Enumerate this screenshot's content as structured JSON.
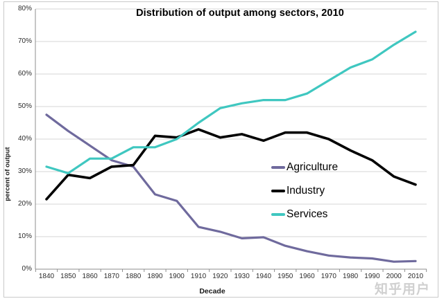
{
  "watermark": {
    "text": "知乎用户"
  },
  "chart_data": {
    "type": "line",
    "title": "Distribution of output among sectors, 2010",
    "xlabel": "Decade",
    "ylabel": "percent of output",
    "categories": [
      1840,
      1850,
      1860,
      1870,
      1880,
      1890,
      1900,
      1910,
      1920,
      1930,
      1940,
      1950,
      1960,
      1970,
      1980,
      1990,
      2000,
      2010
    ],
    "x_tick_labels": [
      "1840",
      "1850",
      "1860",
      "1870",
      "1880",
      "1890",
      "1900",
      "1910",
      "1920",
      "1930",
      "1940",
      "1950",
      "1960",
      "1970",
      "1980",
      "1990",
      "2000",
      "2010"
    ],
    "y_tick_labels": [
      "0%",
      "10%",
      "20%",
      "30%",
      "40%",
      "50%",
      "60%",
      "70%",
      "80%"
    ],
    "ylim": [
      0,
      80
    ],
    "y_tick_step": 10,
    "grid": true,
    "legend_position": "center-right",
    "grid_color": "#d6d6d6",
    "axis_color": "#8c8c8c",
    "series": [
      {
        "name": "Agriculture",
        "color": "#6f6a9d",
        "values": [
          47.5,
          42.5,
          38,
          33.5,
          31.5,
          23,
          21,
          13,
          11.5,
          9.5,
          9.8,
          7.2,
          5.5,
          4.2,
          3.6,
          3.3,
          2.3,
          2.5
        ]
      },
      {
        "name": "Industry",
        "color": "#000000",
        "values": [
          21.5,
          29,
          28,
          31.5,
          32,
          41,
          40.5,
          43,
          40.5,
          41.5,
          39.5,
          42,
          42,
          40,
          36.5,
          33.5,
          28.5,
          26
        ]
      },
      {
        "name": "Services",
        "color": "#3fc7c0",
        "values": [
          31.5,
          29.5,
          34,
          34,
          37.5,
          37.5,
          40,
          45,
          49.5,
          51,
          52,
          52,
          54,
          58,
          62,
          64.5,
          69,
          73
        ]
      }
    ]
  }
}
